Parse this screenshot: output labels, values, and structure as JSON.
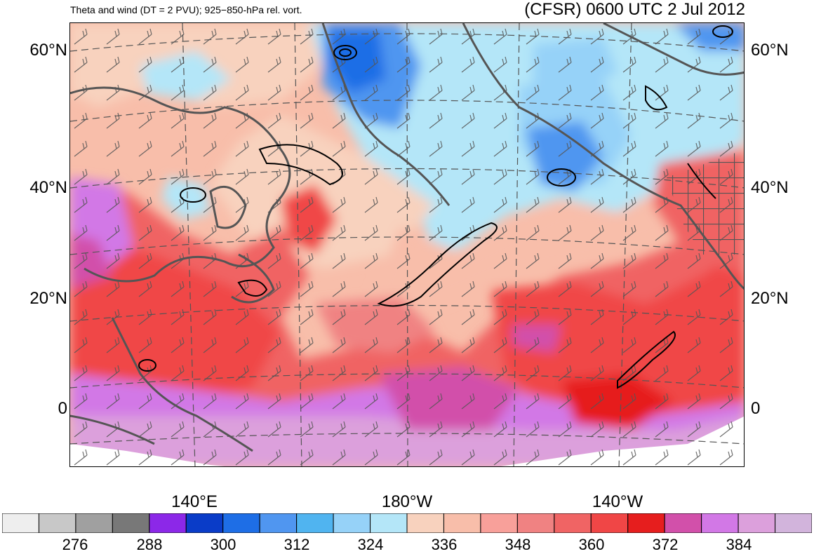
{
  "title": {
    "left": "Theta and wind (DT = 2 PVU); 925−850-hPa rel. vort.",
    "right": "(CFSR) 0600 UTC 2 Jul 2012"
  },
  "lat_labels": [
    "60°N",
    "40°N",
    "20°N",
    "0"
  ],
  "lon_labels": [
    "140°E",
    "180°W",
    "140°W"
  ],
  "colorbar": {
    "colors": [
      "#eeeeee",
      "#c8c8c8",
      "#a0a0a0",
      "#787878",
      "#8c28e8",
      "#0a3cc8",
      "#1e6ee6",
      "#5096f0",
      "#50b4f0",
      "#96d2f8",
      "#b4e6f8",
      "#f8d2be",
      "#f8beaa",
      "#f8a09a",
      "#f08282",
      "#f06464",
      "#f04646",
      "#e61e1e",
      "#d250aa",
      "#d278e6",
      "#dca0dc",
      "#d2b4dc"
    ],
    "labels": [
      "276",
      "288",
      "300",
      "312",
      "324",
      "336",
      "348",
      "360",
      "372",
      "384"
    ]
  }
}
